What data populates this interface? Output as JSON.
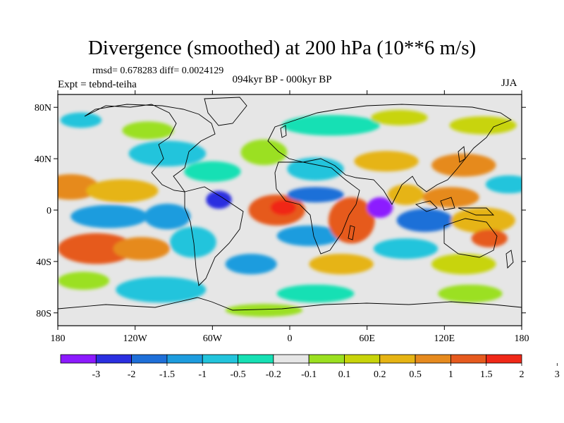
{
  "title": "Divergence (smoothed) at 200 hPa (10**6 m/s)",
  "stats": "rmsd= 0.678283 diff= 0.0024129",
  "experiment": "Expt = tebnd-teiha",
  "period": "094kyr BP - 000kyr BP",
  "season": "JJA",
  "axes": {
    "lat_labels": [
      "80N",
      "40N",
      "0",
      "40S",
      "80S"
    ],
    "lat_values": [
      80,
      40,
      0,
      -40,
      -80
    ],
    "lon_labels": [
      "180",
      "120W",
      "60W",
      "0",
      "60E",
      "120E",
      "180"
    ],
    "lon_values": [
      -180,
      -120,
      -60,
      0,
      60,
      120,
      180
    ],
    "lat_range": [
      -90,
      90
    ],
    "lon_range": [
      -180,
      180
    ]
  },
  "colorbar": {
    "labels": [
      "-3",
      "-2",
      "-1.5",
      "-1",
      "-0.5",
      "-0.2",
      "-0.1",
      "0.1",
      "0.2",
      "0.5",
      "1",
      "1.5",
      "2",
      "3"
    ],
    "colors": [
      "#8c1aff",
      "#2a2fe0",
      "#1e6fd8",
      "#1d9cde",
      "#22c4dc",
      "#16e0b4",
      "#e6e6e6",
      "#9be020",
      "#c8d40a",
      "#e6b414",
      "#e68a1e",
      "#e65a1e",
      "#f02818"
    ]
  },
  "map_colors": {
    "background": "#e6e6e6",
    "land_outline": "#000000"
  },
  "field_blobs": [
    {
      "lon": 32,
      "lat": 66,
      "rx": 38,
      "ry": 8,
      "level": 5
    },
    {
      "lon": 85,
      "lat": 72,
      "rx": 22,
      "ry": 6,
      "level": 8
    },
    {
      "lon": 150,
      "lat": 66,
      "rx": 26,
      "ry": 7,
      "level": 8
    },
    {
      "lon": -162,
      "lat": 70,
      "rx": 16,
      "ry": 6,
      "level": 4
    },
    {
      "lon": -110,
      "lat": 62,
      "rx": 20,
      "ry": 7,
      "level": 7
    },
    {
      "lon": -95,
      "lat": 44,
      "rx": 30,
      "ry": 10,
      "level": 4
    },
    {
      "lon": -60,
      "lat": 30,
      "rx": 22,
      "ry": 8,
      "level": 5
    },
    {
      "lon": -20,
      "lat": 45,
      "rx": 18,
      "ry": 10,
      "level": 7
    },
    {
      "lon": 20,
      "lat": 32,
      "rx": 22,
      "ry": 9,
      "level": 4
    },
    {
      "lon": 75,
      "lat": 38,
      "rx": 25,
      "ry": 8,
      "level": 9
    },
    {
      "lon": 135,
      "lat": 35,
      "rx": 25,
      "ry": 9,
      "level": 10
    },
    {
      "lon": 170,
      "lat": 20,
      "rx": 18,
      "ry": 7,
      "level": 4
    },
    {
      "lon": -170,
      "lat": 18,
      "rx": 22,
      "ry": 10,
      "level": 10
    },
    {
      "lon": -130,
      "lat": 15,
      "rx": 28,
      "ry": 9,
      "level": 9
    },
    {
      "lon": -140,
      "lat": -5,
      "rx": 30,
      "ry": 9,
      "level": 3
    },
    {
      "lon": -150,
      "lat": -30,
      "rx": 30,
      "ry": 12,
      "level": 11
    },
    {
      "lon": -115,
      "lat": -30,
      "rx": 22,
      "ry": 9,
      "level": 10
    },
    {
      "lon": -95,
      "lat": -5,
      "rx": 18,
      "ry": 10,
      "level": 3
    },
    {
      "lon": -75,
      "lat": -25,
      "rx": 18,
      "ry": 12,
      "level": 4
    },
    {
      "lon": -55,
      "lat": 8,
      "rx": 10,
      "ry": 7,
      "level": 1
    },
    {
      "lon": -10,
      "lat": 0,
      "rx": 22,
      "ry": 12,
      "level": 11
    },
    {
      "lon": -5,
      "lat": 2,
      "rx": 10,
      "ry": 6,
      "level": 12
    },
    {
      "lon": 20,
      "lat": 12,
      "rx": 22,
      "ry": 6,
      "level": 2
    },
    {
      "lon": 15,
      "lat": -20,
      "rx": 25,
      "ry": 8,
      "level": 3
    },
    {
      "lon": 48,
      "lat": -8,
      "rx": 18,
      "ry": 18,
      "level": 11
    },
    {
      "lon": 70,
      "lat": 2,
      "rx": 10,
      "ry": 8,
      "level": 0
    },
    {
      "lon": 90,
      "lat": 12,
      "rx": 14,
      "ry": 8,
      "level": 9
    },
    {
      "lon": 105,
      "lat": -8,
      "rx": 22,
      "ry": 9,
      "level": 2
    },
    {
      "lon": 125,
      "lat": 10,
      "rx": 22,
      "ry": 8,
      "level": 10
    },
    {
      "lon": 150,
      "lat": -8,
      "rx": 25,
      "ry": 10,
      "level": 9
    },
    {
      "lon": 155,
      "lat": -22,
      "rx": 14,
      "ry": 7,
      "level": 11
    },
    {
      "lon": 90,
      "lat": -30,
      "rx": 25,
      "ry": 8,
      "level": 4
    },
    {
      "lon": 135,
      "lat": -42,
      "rx": 25,
      "ry": 8,
      "level": 8
    },
    {
      "lon": 40,
      "lat": -42,
      "rx": 25,
      "ry": 8,
      "level": 9
    },
    {
      "lon": -30,
      "lat": -42,
      "rx": 20,
      "ry": 8,
      "level": 3
    },
    {
      "lon": -100,
      "lat": -62,
      "rx": 35,
      "ry": 10,
      "level": 4
    },
    {
      "lon": -160,
      "lat": -55,
      "rx": 20,
      "ry": 7,
      "level": 7
    },
    {
      "lon": 20,
      "lat": -65,
      "rx": 30,
      "ry": 7,
      "level": 5
    },
    {
      "lon": 140,
      "lat": -65,
      "rx": 25,
      "ry": 7,
      "level": 7
    },
    {
      "lon": -20,
      "lat": -78,
      "rx": 30,
      "ry": 5,
      "level": 7
    }
  ]
}
